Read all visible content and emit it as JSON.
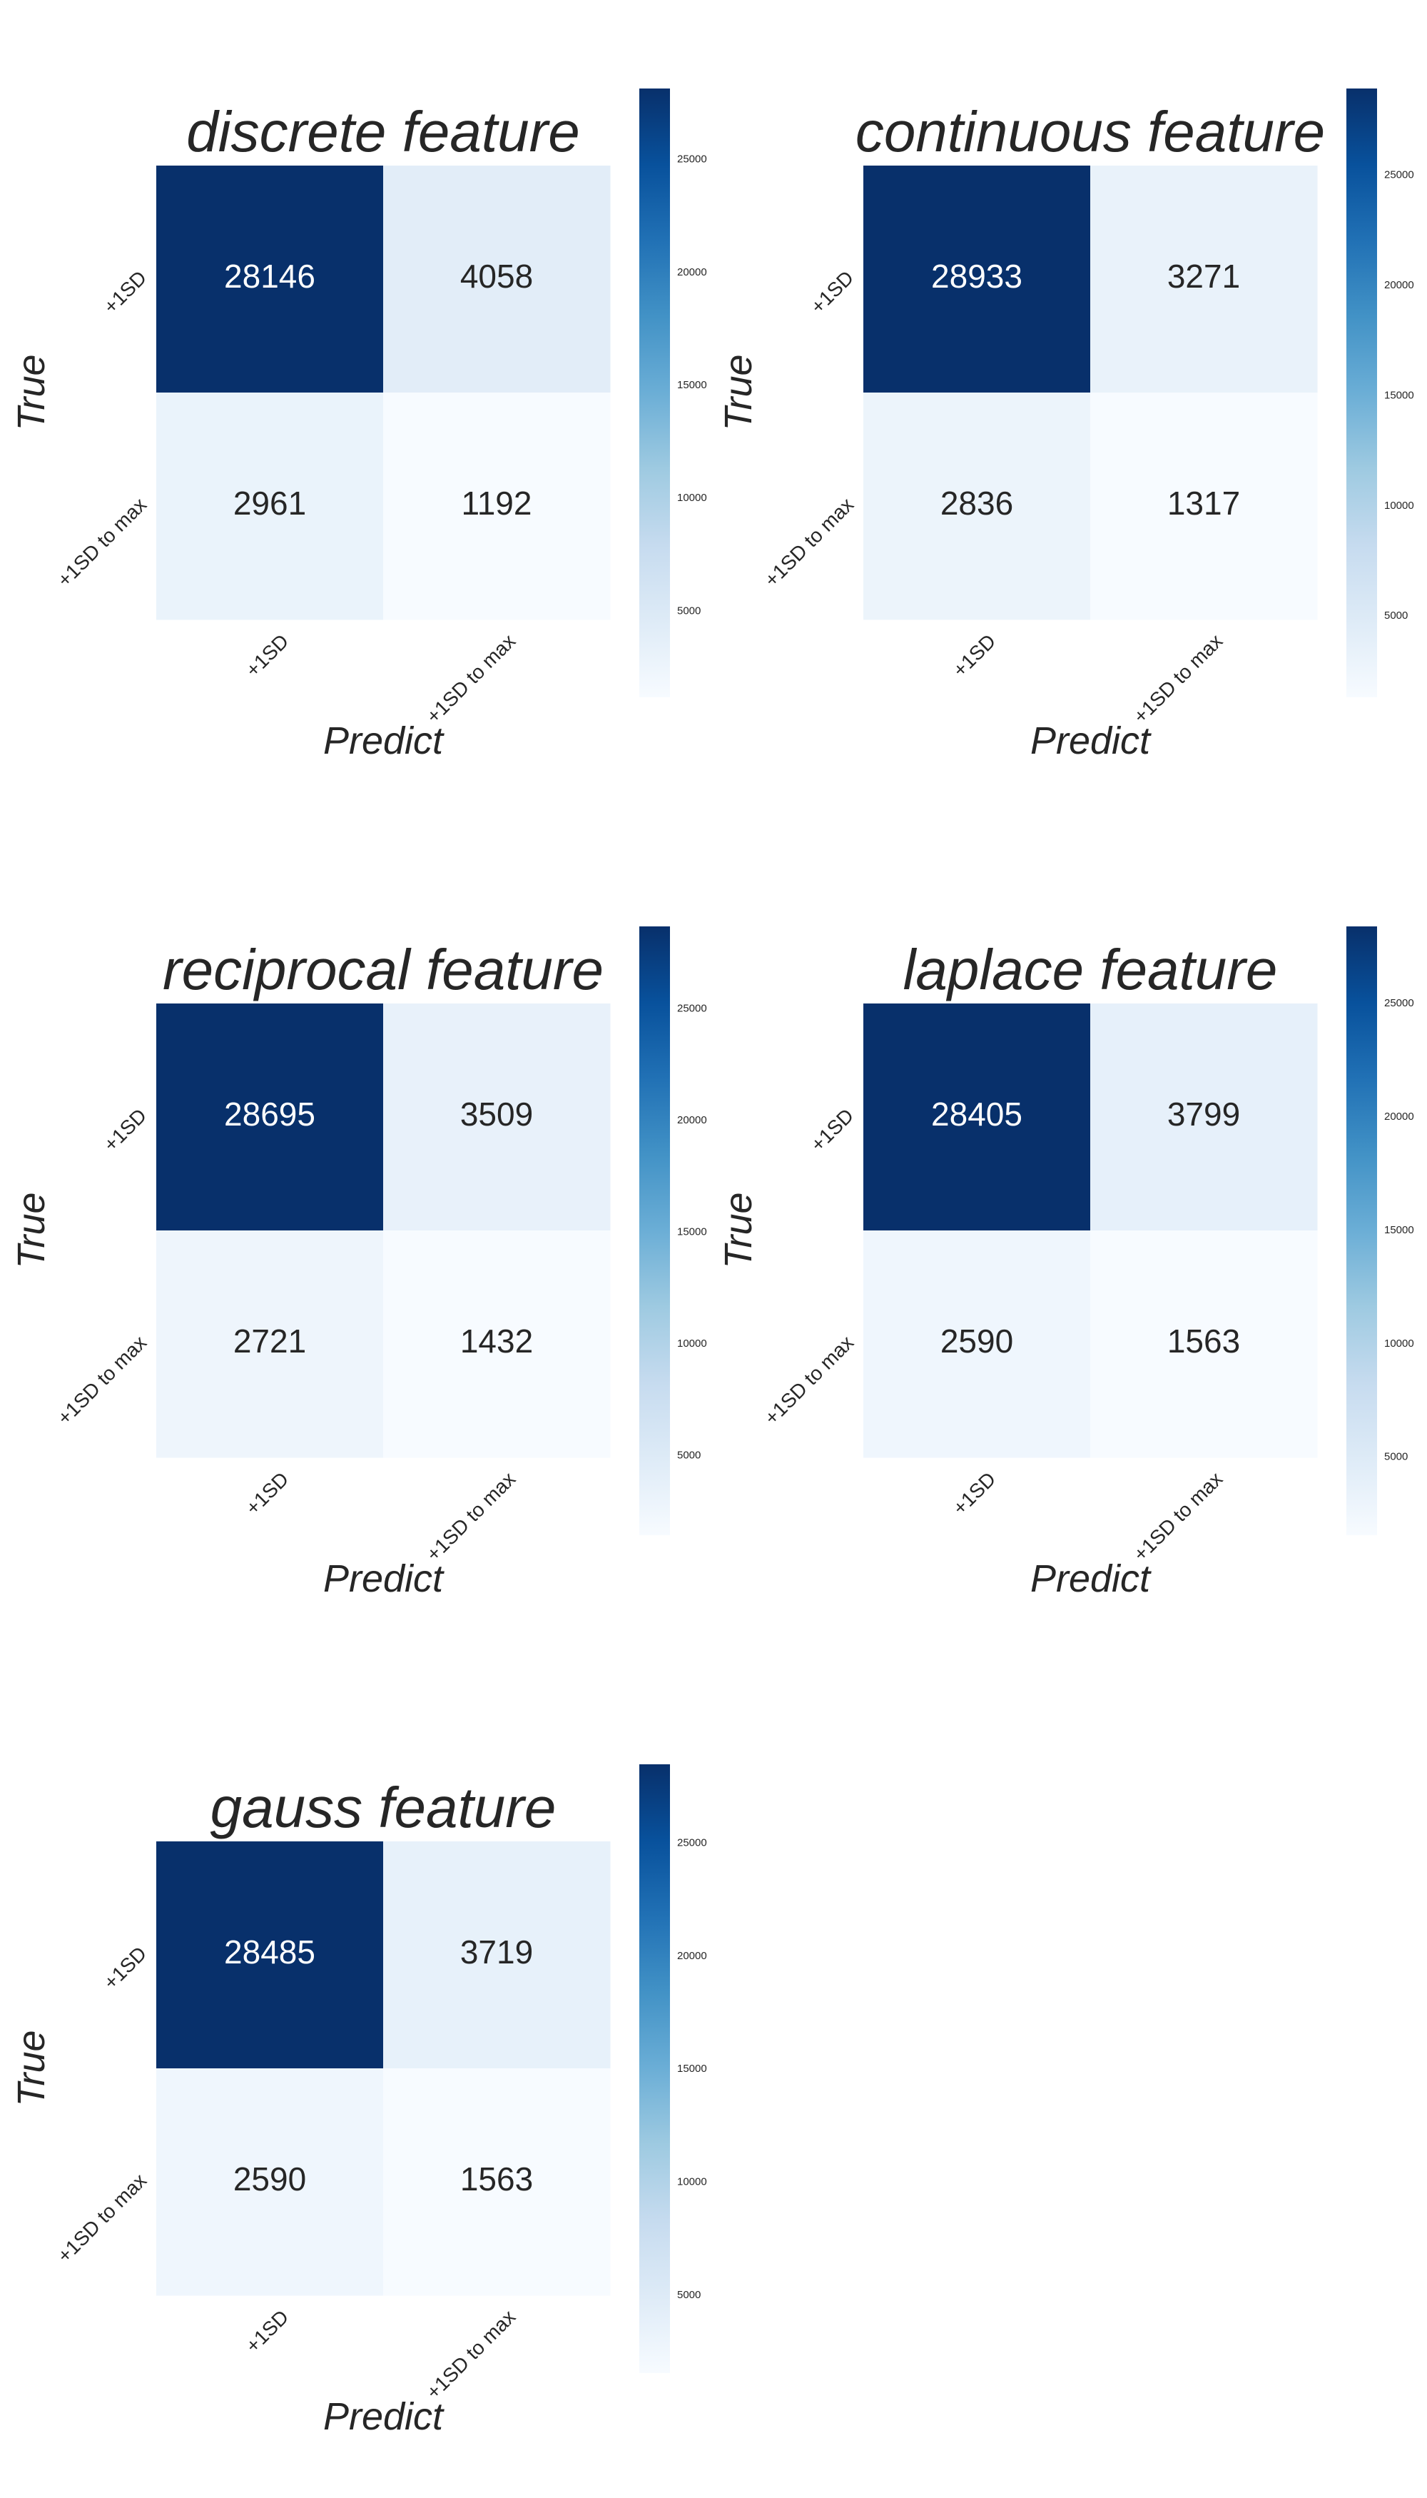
{
  "chart_data": [
    {
      "type": "heatmap",
      "title": "discrete feature",
      "x_label": "Predict",
      "y_label": "True",
      "x_categories": [
        "+1SD",
        "+1SD to max"
      ],
      "y_categories": [
        "+1SD",
        "+1SD to max"
      ],
      "values": [
        [
          28146,
          4058
        ],
        [
          2961,
          1192
        ]
      ],
      "colormap": "Blues",
      "zlim": [
        1192,
        28146
      ],
      "colorbar_ticks": [
        5000,
        10000,
        15000,
        20000,
        25000
      ]
    },
    {
      "type": "heatmap",
      "title": "continuous feature",
      "x_label": "Predict",
      "y_label": "True",
      "x_categories": [
        "+1SD",
        "+1SD to max"
      ],
      "y_categories": [
        "+1SD",
        "+1SD to max"
      ],
      "values": [
        [
          28933,
          3271
        ],
        [
          2836,
          1317
        ]
      ],
      "colormap": "Blues",
      "zlim": [
        1317,
        28933
      ],
      "colorbar_ticks": [
        5000,
        10000,
        15000,
        20000,
        25000
      ]
    },
    {
      "type": "heatmap",
      "title": "reciprocal feature",
      "x_label": "Predict",
      "y_label": "True",
      "x_categories": [
        "+1SD",
        "+1SD to max"
      ],
      "y_categories": [
        "+1SD",
        "+1SD to max"
      ],
      "values": [
        [
          28695,
          3509
        ],
        [
          2721,
          1432
        ]
      ],
      "colormap": "Blues",
      "zlim": [
        1432,
        28695
      ],
      "colorbar_ticks": [
        5000,
        10000,
        15000,
        20000,
        25000
      ]
    },
    {
      "type": "heatmap",
      "title": "laplace feature",
      "x_label": "Predict",
      "y_label": "True",
      "x_categories": [
        "+1SD",
        "+1SD to max"
      ],
      "y_categories": [
        "+1SD",
        "+1SD to max"
      ],
      "values": [
        [
          28405,
          3799
        ],
        [
          2590,
          1563
        ]
      ],
      "colormap": "Blues",
      "zlim": [
        1563,
        28405
      ],
      "colorbar_ticks": [
        5000,
        10000,
        15000,
        20000,
        25000
      ]
    },
    {
      "type": "heatmap",
      "title": "gauss feature",
      "x_label": "Predict",
      "y_label": "True",
      "x_categories": [
        "+1SD",
        "+1SD to max"
      ],
      "y_categories": [
        "+1SD",
        "+1SD to max"
      ],
      "values": [
        [
          28485,
          3719
        ],
        [
          2590,
          1563
        ]
      ],
      "colormap": "Blues",
      "zlim": [
        1563,
        28485
      ],
      "colorbar_ticks": [
        5000,
        10000,
        15000,
        20000,
        25000
      ]
    }
  ]
}
